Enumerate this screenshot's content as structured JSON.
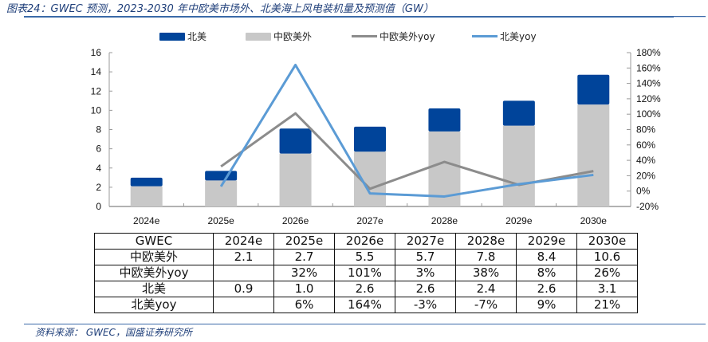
{
  "figure": {
    "title": "图表24：GWEC 预测，2023-2030 年中欧美市场外、北美海上风电装机量及预测值（GW）",
    "source": "资料来源：  GWEC，国盛证券研究所"
  },
  "colors": {
    "north_america": "#00449a",
    "non_cn_eu_us": "#c8c8c8",
    "non_cn_eu_us_yoy": "#8c8c8c",
    "north_america_yoy": "#5b9bd5",
    "rule": "#3b6aa8"
  },
  "chart_data": {
    "type": "bar",
    "stacked": true,
    "title": "",
    "categories": [
      "2024e",
      "2025e",
      "2026e",
      "2027e",
      "2028e",
      "2029e",
      "2030e"
    ],
    "series": [
      {
        "name": "中欧美外",
        "kind": "bar",
        "axis": "left",
        "values": [
          2.1,
          2.7,
          5.5,
          5.7,
          7.8,
          8.4,
          10.6
        ]
      },
      {
        "name": "北美",
        "kind": "bar",
        "axis": "left",
        "values": [
          0.9,
          1.0,
          2.6,
          2.6,
          2.4,
          2.6,
          3.1
        ]
      },
      {
        "name": "中欧美外yoy",
        "kind": "line",
        "axis": "right",
        "values": [
          null,
          32,
          101,
          3,
          38,
          8,
          26
        ]
      },
      {
        "name": "北美yoy",
        "kind": "line",
        "axis": "right",
        "values": [
          null,
          6,
          164,
          -3,
          -7,
          9,
          21
        ]
      }
    ],
    "legend": [
      "北美",
      "中欧美外",
      "中欧美外yoy",
      "北美yoy"
    ],
    "legend_position": "top",
    "y_left": {
      "min": 0,
      "max": 16,
      "step": 2,
      "ticks": [
        "0",
        "2",
        "4",
        "6",
        "8",
        "10",
        "12",
        "14",
        "16"
      ]
    },
    "y_right": {
      "min": -20,
      "max": 180,
      "step": 20,
      "ticks": [
        "-20%",
        "0%",
        "20%",
        "40%",
        "60%",
        "80%",
        "100%",
        "120%",
        "140%",
        "160%",
        "180%"
      ]
    },
    "xlabel": "",
    "ylabel": "",
    "grid": false
  },
  "table": {
    "header": [
      "GWEC",
      "2024e",
      "2025e",
      "2026e",
      "2027e",
      "2028e",
      "2029e",
      "2030e"
    ],
    "rows": [
      [
        "中欧美外",
        "2.1",
        "2.7",
        "5.5",
        "5.7",
        "7.8",
        "8.4",
        "10.6"
      ],
      [
        "中欧美外yoy",
        "",
        "32%",
        "101%",
        "3%",
        "38%",
        "8%",
        "26%"
      ],
      [
        "北美",
        "0.9",
        "1.0",
        "2.6",
        "2.6",
        "2.4",
        "2.6",
        "3.1"
      ],
      [
        "北美yoy",
        "",
        "6%",
        "164%",
        "-3%",
        "-7%",
        "9%",
        "21%"
      ]
    ]
  }
}
